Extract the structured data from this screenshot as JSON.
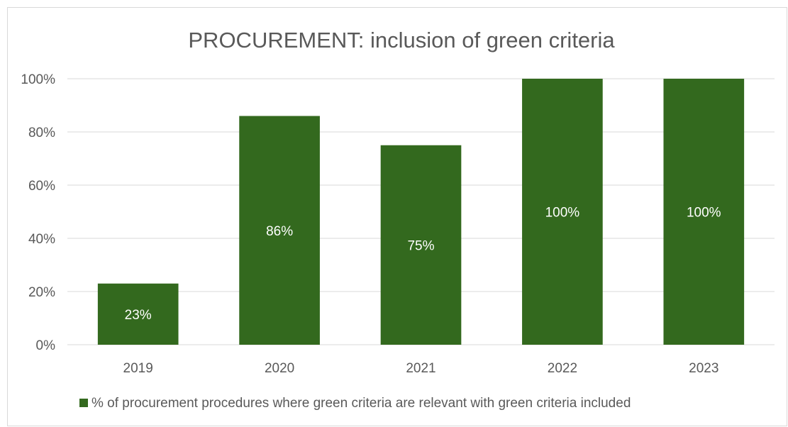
{
  "chart_data": {
    "type": "bar",
    "title": "PROCUREMENT: inclusion of green criteria",
    "categories": [
      "2019",
      "2020",
      "2021",
      "2022",
      "2023"
    ],
    "series": [
      {
        "name": "% of procurement procedures where green criteria are relevant with green criteria included",
        "values": [
          23,
          86,
          75,
          100,
          100
        ],
        "data_labels": [
          "23%",
          "86%",
          "75%",
          "100%",
          "100%"
        ],
        "color": "#33691e"
      }
    ],
    "y_ticks": [
      "0%",
      "20%",
      "40%",
      "60%",
      "80%",
      "100%"
    ],
    "ylim": [
      0,
      100
    ],
    "grid": true,
    "legend_position": "bottom"
  }
}
